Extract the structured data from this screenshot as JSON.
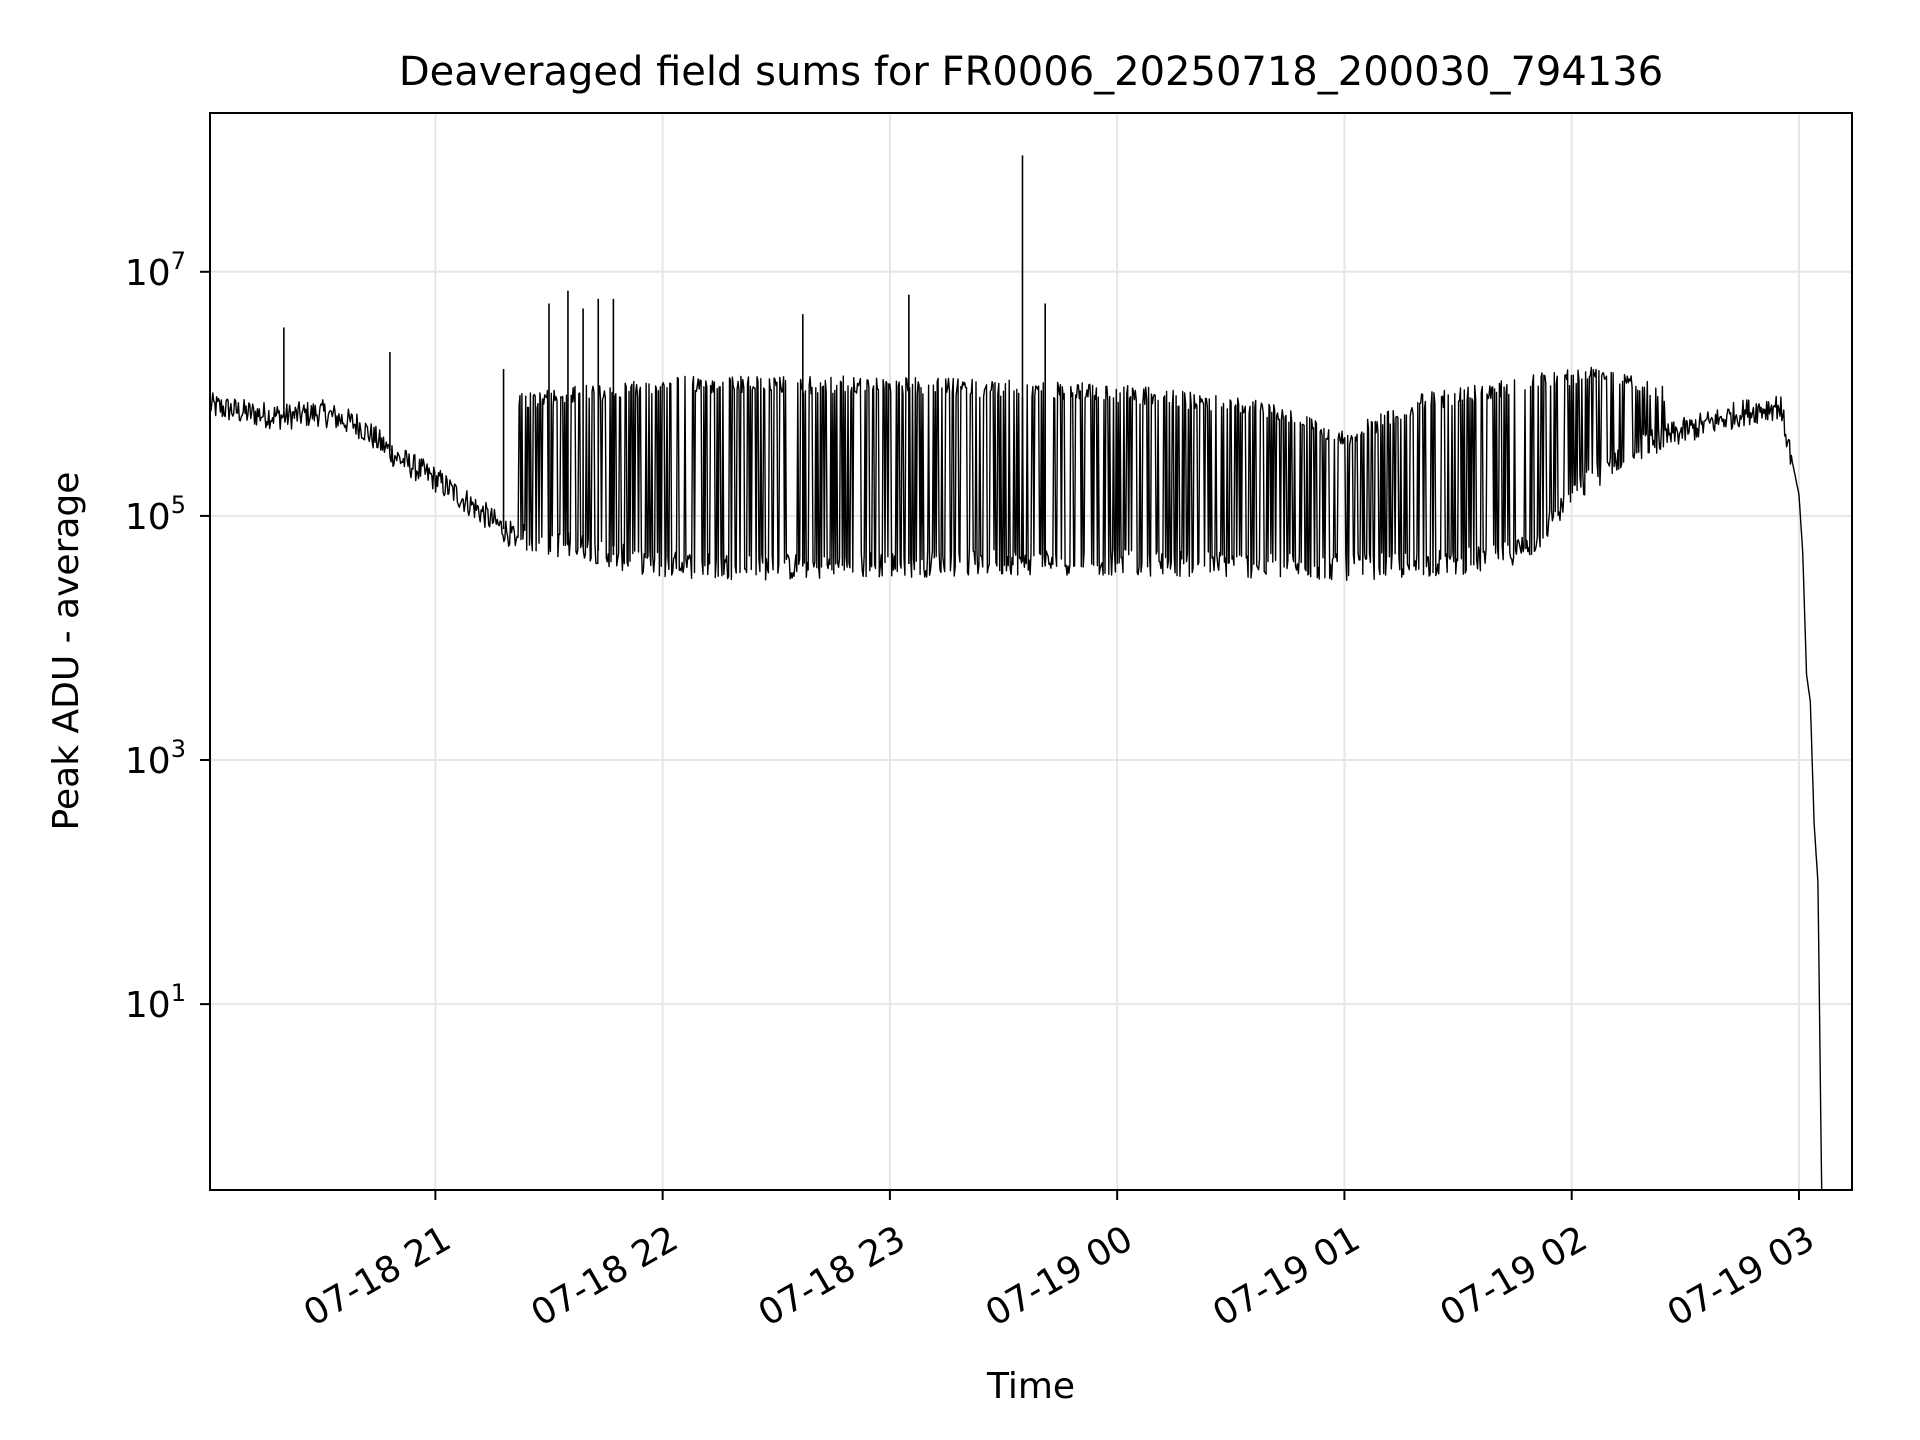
{
  "chart_data": {
    "type": "line",
    "title": "Deaveraged field sums for FR0006_20250718_200030_794136",
    "xlabel": "Time",
    "ylabel": "Peak ADU - average",
    "yscale": "log",
    "ylim": [
      0.3,
      200000000.0
    ],
    "xlim": [
      "2025-07-18 20:00:30",
      "2025-07-19 03:14:00"
    ],
    "grid": true,
    "line_color": "#000000",
    "grid_color": "#e6e6e6",
    "x_ticks": [
      {
        "value": "2025-07-18 21:00",
        "label": "07-18 21"
      },
      {
        "value": "2025-07-18 22:00",
        "label": "07-18 22"
      },
      {
        "value": "2025-07-18 23:00",
        "label": "07-18 23"
      },
      {
        "value": "2025-07-19 00:00",
        "label": "07-19 00"
      },
      {
        "value": "2025-07-19 01:00",
        "label": "07-19 01"
      },
      {
        "value": "2025-07-19 02:00",
        "label": "07-19 02"
      },
      {
        "value": "2025-07-19 03:00",
        "label": "07-19 03"
      }
    ],
    "y_ticks": [
      {
        "value": 10,
        "base": "10",
        "exp": "1"
      },
      {
        "value": 1000,
        "base": "10",
        "exp": "3"
      },
      {
        "value": 100000,
        "base": "10",
        "exp": "5"
      },
      {
        "value": 10000000,
        "base": "10",
        "exp": "7"
      }
    ],
    "series": [
      {
        "points": [
          {
            "x": "2025-07-18 20:00:30",
            "y": 800000
          },
          {
            "x": "2025-07-18 20:10",
            "y": 700000
          },
          {
            "x": "2025-07-18 20:20",
            "y": 650000
          },
          {
            "x": "2025-07-18 20:30",
            "y": 700000
          },
          {
            "x": "2025-07-18 20:40",
            "y": 550000
          },
          {
            "x": "2025-07-18 20:50",
            "y": 300000
          },
          {
            "x": "2025-07-18 21:00",
            "y": 200000
          },
          {
            "x": "2025-07-18 21:10",
            "y": 120000
          },
          {
            "x": "2025-07-18 21:20",
            "y": 70000
          },
          {
            "x": "2025-07-18 21:30",
            "y": 60000
          },
          {
            "x": "2025-07-18 21:40",
            "y": 55000
          },
          {
            "x": "2025-07-18 21:50",
            "y": 45000
          },
          {
            "x": "2025-07-18 22:00",
            "y": 40000
          },
          {
            "x": "2025-07-18 22:30",
            "y": 38000
          },
          {
            "x": "2025-07-18 23:00",
            "y": 40000
          },
          {
            "x": "2025-07-18 23:30",
            "y": 42000
          },
          {
            "x": "2025-07-19 00:00",
            "y": 42000
          },
          {
            "x": "2025-07-19 00:30",
            "y": 40000
          },
          {
            "x": "2025-07-19 01:00",
            "y": 38000
          },
          {
            "x": "2025-07-19 01:20",
            "y": 40000
          },
          {
            "x": "2025-07-19 01:40",
            "y": 45000
          },
          {
            "x": "2025-07-19 01:50",
            "y": 60000
          },
          {
            "x": "2025-07-19 02:00",
            "y": 150000
          },
          {
            "x": "2025-07-19 02:15",
            "y": 350000
          },
          {
            "x": "2025-07-19 02:30",
            "y": 500000
          },
          {
            "x": "2025-07-19 02:45",
            "y": 700000
          },
          {
            "x": "2025-07-19 02:55",
            "y": 800000
          },
          {
            "x": "2025-07-19 02:58",
            "y": 300000
          },
          {
            "x": "2025-07-19 03:00",
            "y": 150000
          },
          {
            "x": "2025-07-19 03:01",
            "y": 50000
          },
          {
            "x": "2025-07-19 03:02",
            "y": 5000
          },
          {
            "x": "2025-07-19 03:03",
            "y": 3000
          },
          {
            "x": "2025-07-19 03:04",
            "y": 300
          },
          {
            "x": "2025-07-19 03:05",
            "y": 100
          },
          {
            "x": "2025-07-19 03:06",
            "y": 0.3
          }
        ],
        "upper_envelope": [
          {
            "x": "2025-07-18 21:20",
            "y": 1000000
          },
          {
            "x": "2025-07-18 22:00",
            "y": 1400000
          },
          {
            "x": "2025-07-18 23:00",
            "y": 1400000
          },
          {
            "x": "2025-07-19 00:00",
            "y": 1200000
          },
          {
            "x": "2025-07-19 00:40",
            "y": 900000
          },
          {
            "x": "2025-07-19 01:00",
            "y": 500000
          },
          {
            "x": "2025-07-19 01:20",
            "y": 1000000
          },
          {
            "x": "2025-07-19 01:50",
            "y": 1500000
          },
          {
            "x": "2025-07-19 02:10",
            "y": 1800000
          },
          {
            "x": "2025-07-19 02:25",
            "y": 1200000
          }
        ],
        "spikes": [
          {
            "x": "2025-07-18 20:20",
            "y": 3500000
          },
          {
            "x": "2025-07-18 20:48",
            "y": 2200000
          },
          {
            "x": "2025-07-18 21:18",
            "y": 1600000
          },
          {
            "x": "2025-07-18 21:30",
            "y": 5500000
          },
          {
            "x": "2025-07-18 21:35",
            "y": 7000000
          },
          {
            "x": "2025-07-18 21:39",
            "y": 5000000
          },
          {
            "x": "2025-07-18 21:43",
            "y": 6000000
          },
          {
            "x": "2025-07-18 21:47",
            "y": 6000000
          },
          {
            "x": "2025-07-18 22:37",
            "y": 4500000
          },
          {
            "x": "2025-07-18 23:05",
            "y": 6500000
          },
          {
            "x": "2025-07-18 23:35",
            "y": 90000000
          },
          {
            "x": "2025-07-18 23:41",
            "y": 5500000
          }
        ]
      }
    ]
  }
}
